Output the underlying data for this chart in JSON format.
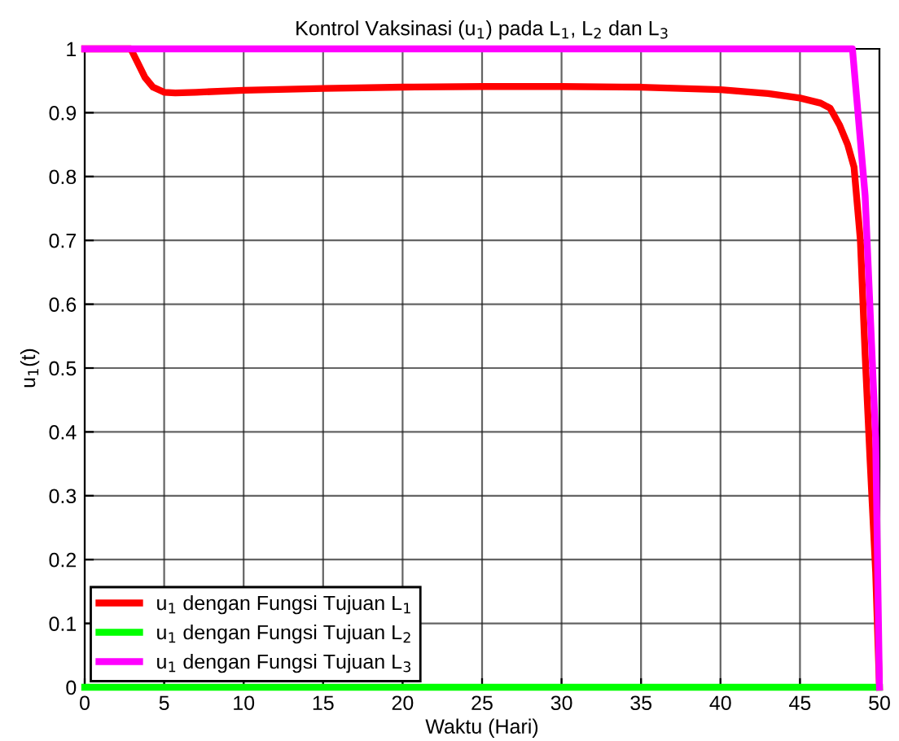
{
  "chart_data": {
    "type": "line",
    "title": "Kontrol Vaksinasi (u$_{1}$) pada L$_{1}$, L$_{2}$ dan L$_{3}$",
    "xlabel": "Waktu (Hari)",
    "ylabel": "u$_{1}$(t)",
    "xlim": [
      0,
      50
    ],
    "ylim": [
      0,
      1
    ],
    "xticks": [
      0,
      5,
      10,
      15,
      20,
      25,
      30,
      35,
      40,
      45,
      50
    ],
    "yticks": [
      0,
      0.1,
      0.2,
      0.3,
      0.4,
      0.5,
      0.6,
      0.7,
      0.8,
      0.9,
      1
    ],
    "grid": true,
    "legend": "bottom left",
    "line_style": "solid",
    "marker": "none",
    "series": [
      {
        "name": "u$_{1}$ dengan Fungsi Tujuan L$_{1}$",
        "color": "#ff0000",
        "x": [
          0,
          2.9,
          3.3,
          3.8,
          4.3,
          5,
          5.7,
          7,
          10,
          15,
          20,
          25,
          30,
          35,
          40,
          43,
          45,
          46.3,
          46.9,
          47.5,
          48,
          48.4,
          48.8,
          49.1,
          49.4,
          49.76,
          50
        ],
        "values": [
          1,
          1,
          0.98,
          0.955,
          0.94,
          0.932,
          0.931,
          0.932,
          0.935,
          0.938,
          0.94,
          0.941,
          0.941,
          0.94,
          0.936,
          0.93,
          0.923,
          0.915,
          0.907,
          0.88,
          0.85,
          0.815,
          0.7,
          0.52,
          0.36,
          0.18,
          0
        ]
      },
      {
        "name": "u$_{1}$ dengan Fungsi Tujuan L$_{2}$",
        "color": "#00ff00",
        "x": [
          0,
          50
        ],
        "values": [
          0,
          0
        ]
      },
      {
        "name": "u$_{1}$ dengan Fungsi Tujuan L$_{3}$",
        "color": "#ff00ff",
        "x": [
          0,
          48.3,
          49.1,
          49.76,
          50
        ],
        "values": [
          1,
          1,
          0.77,
          0.39,
          0
        ]
      }
    ]
  }
}
